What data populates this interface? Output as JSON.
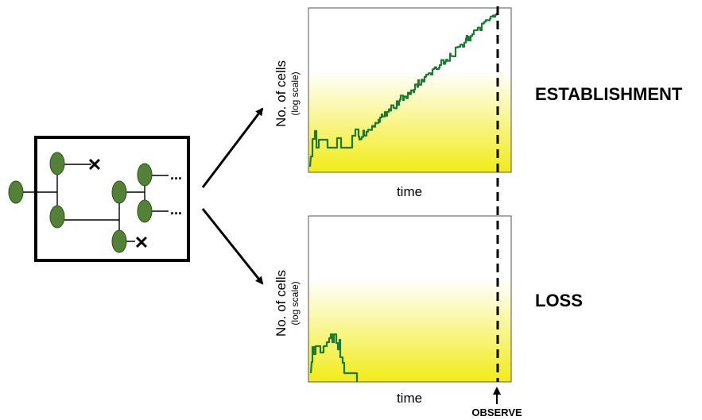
{
  "panels": [
    {
      "id": "establishment",
      "outcome_label": "ESTABLISHMENT",
      "ylabel": "No. of cells",
      "ylabel_note": "(log scale)",
      "xlabel": "time"
    },
    {
      "id": "loss",
      "outcome_label": "LOSS",
      "ylabel": "No. of cells",
      "ylabel_note": "(log scale)",
      "xlabel": "time"
    }
  ],
  "observe_label": "OBSERVE",
  "tree": {
    "ellipsis_1": "...",
    "ellipsis_2": "...",
    "death_mark_1": "✕",
    "death_mark_2": "✕"
  },
  "colors": {
    "cell_fill": "#538135",
    "trace": "#1e7a32",
    "gradient_bottom": "#f2ec17"
  }
}
